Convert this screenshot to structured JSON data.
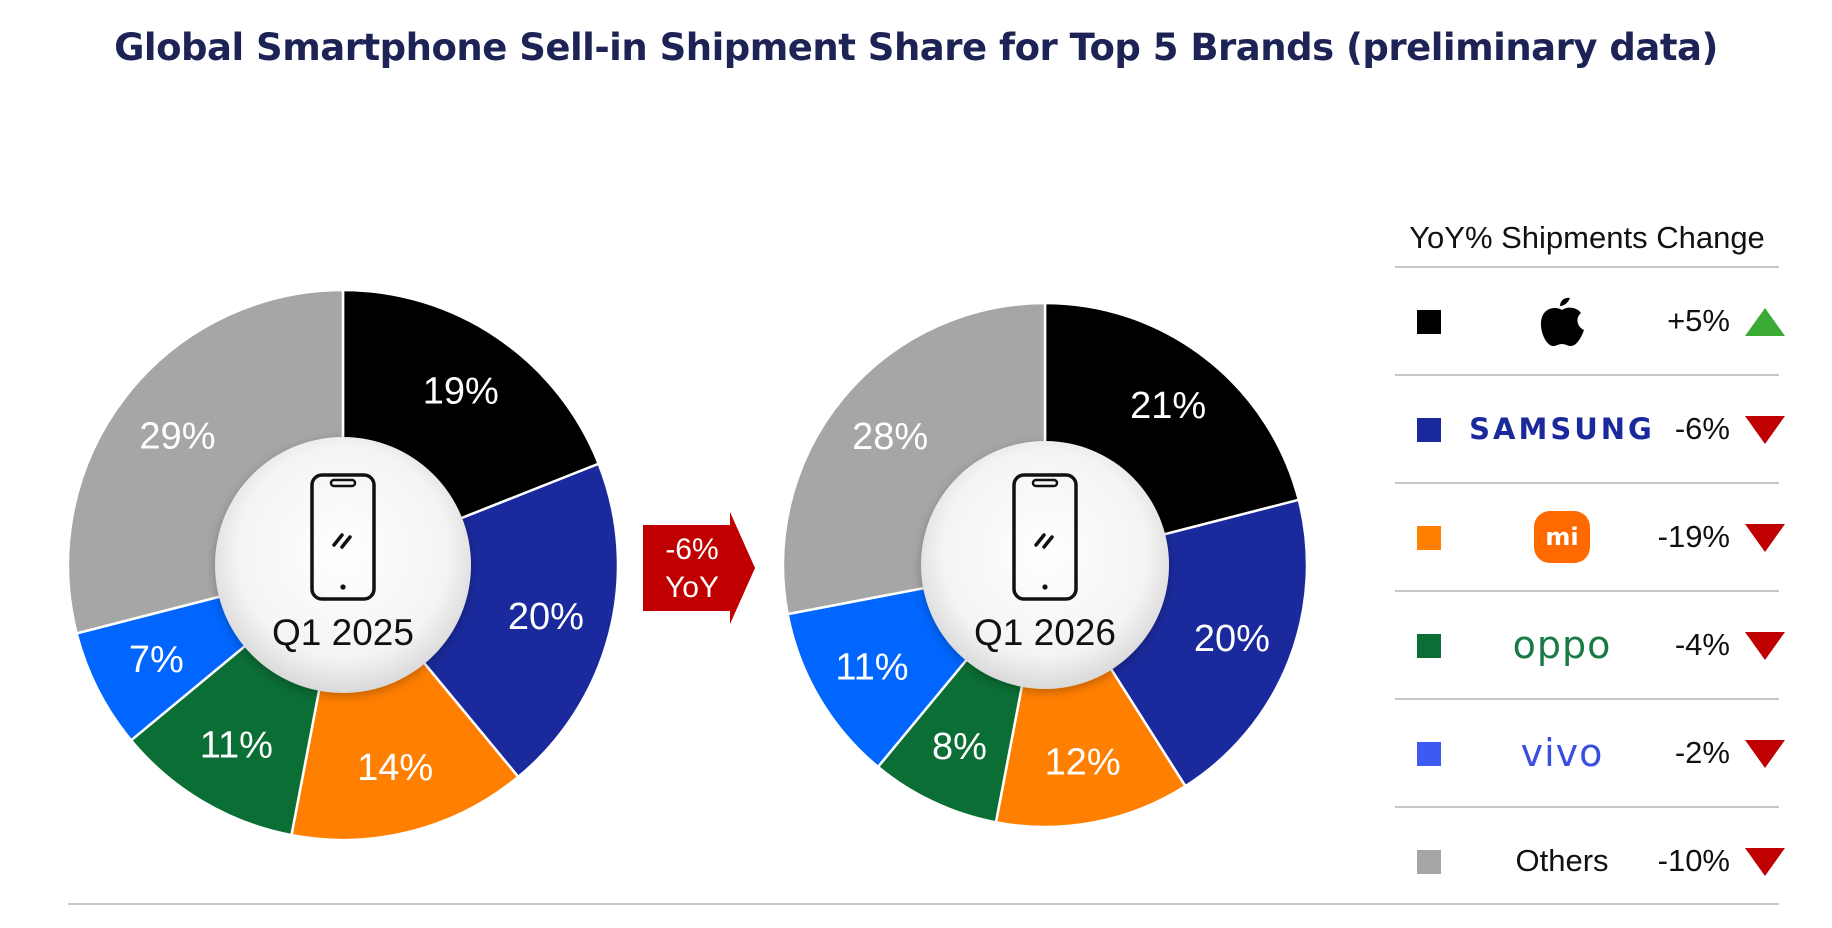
{
  "title": "Global Smartphone Sell-in Shipment Share for Top 5 Brands (preliminary data)",
  "arrow": {
    "line1": "-6%",
    "line2": "YoY",
    "color": "#c00000"
  },
  "legend": {
    "title": "YoY% Shipments Change",
    "rows": [
      {
        "brand": "Apple",
        "icon": "apple-logo-icon",
        "change": "+5%",
        "direction": "up",
        "color": "#000000"
      },
      {
        "brand": "SAMSUNG",
        "icon": "samsung-logo",
        "change": "-6%",
        "direction": "down",
        "color": "#1a2a9c"
      },
      {
        "brand": "mi",
        "icon": "xiaomi-logo-icon",
        "change": "-19%",
        "direction": "down",
        "color": "#ff7f00"
      },
      {
        "brand": "oppo",
        "icon": "oppo-logo",
        "change": "-4%",
        "direction": "down",
        "color": "#0b6e34"
      },
      {
        "brand": "vivo",
        "icon": "vivo-logo",
        "change": "-2%",
        "direction": "down",
        "color": "#3d5af1"
      },
      {
        "brand": "Others",
        "icon": "others-label",
        "change": "-10%",
        "direction": "down",
        "color": "#a6a6a6"
      }
    ],
    "up_color": "#3aaa35",
    "down_color": "#c00000"
  },
  "chart_data": [
    {
      "type": "pie",
      "title": "Q1 2025",
      "center_icon": "smartphone-icon",
      "series": [
        {
          "labels": [
            "Apple",
            "Samsung",
            "Xiaomi",
            "OPPO",
            "vivo",
            "Others"
          ],
          "values": [
            19,
            20,
            14,
            11,
            7,
            29
          ],
          "value_labels": [
            "19%",
            "20%",
            "14%",
            "11%",
            "7%",
            "29%"
          ],
          "colors": [
            "#000000",
            "#1a2a9c",
            "#ff7f00",
            "#0b6e34",
            "#0066ff",
            "#a6a6a6"
          ]
        }
      ]
    },
    {
      "type": "pie",
      "title": "Q1 2026",
      "center_icon": "smartphone-icon",
      "series": [
        {
          "labels": [
            "Apple",
            "Samsung",
            "Xiaomi",
            "OPPO",
            "vivo",
            "Others"
          ],
          "values": [
            21,
            20,
            12,
            8,
            11,
            28
          ],
          "value_labels": [
            "21%",
            "20%",
            "12%",
            "8%",
            "11%",
            "28%"
          ],
          "colors": [
            "#000000",
            "#1a2a9c",
            "#ff7f00",
            "#0b6e34",
            "#0066ff",
            "#a6a6a6"
          ]
        }
      ]
    }
  ]
}
